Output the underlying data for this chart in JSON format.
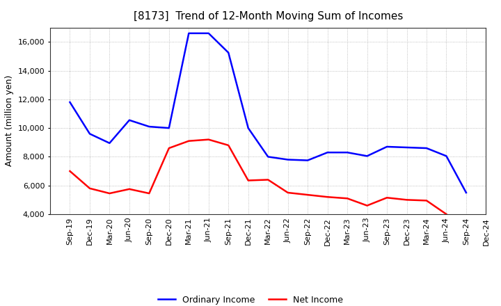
{
  "title": "[8173]  Trend of 12-Month Moving Sum of Incomes",
  "ylabel": "Amount (million yen)",
  "x_labels": [
    "Sep-19",
    "Dec-19",
    "Mar-20",
    "Jun-20",
    "Sep-20",
    "Dec-20",
    "Mar-21",
    "Jun-21",
    "Sep-21",
    "Dec-21",
    "Mar-22",
    "Jun-22",
    "Sep-22",
    "Dec-22",
    "Mar-23",
    "Jun-23",
    "Sep-23",
    "Dec-23",
    "Mar-24",
    "Jun-24",
    "Sep-24",
    "Dec-24"
  ],
  "ordinary_income": [
    11800,
    9600,
    8950,
    10550,
    10100,
    10000,
    16600,
    16600,
    15250,
    10000,
    8000,
    7800,
    7750,
    8300,
    8300,
    8050,
    8700,
    8650,
    8600,
    8050,
    5500,
    null
  ],
  "net_income": [
    7000,
    5800,
    5450,
    5750,
    5450,
    8600,
    9100,
    9200,
    8800,
    6350,
    6400,
    5500,
    5350,
    5200,
    5100,
    4600,
    5150,
    5000,
    4950,
    4000,
    null,
    null
  ],
  "ordinary_income_color": "#0000ff",
  "net_income_color": "#ff0000",
  "ylim": [
    4000,
    17000
  ],
  "yticks": [
    4000,
    6000,
    8000,
    10000,
    12000,
    14000,
    16000
  ],
  "background_color": "#ffffff",
  "plot_bg_color": "#ffffff",
  "grid_color": "#999999",
  "title_fontsize": 11,
  "axis_label_fontsize": 9,
  "tick_fontsize": 8,
  "legend_fontsize": 9,
  "line_width": 1.8
}
